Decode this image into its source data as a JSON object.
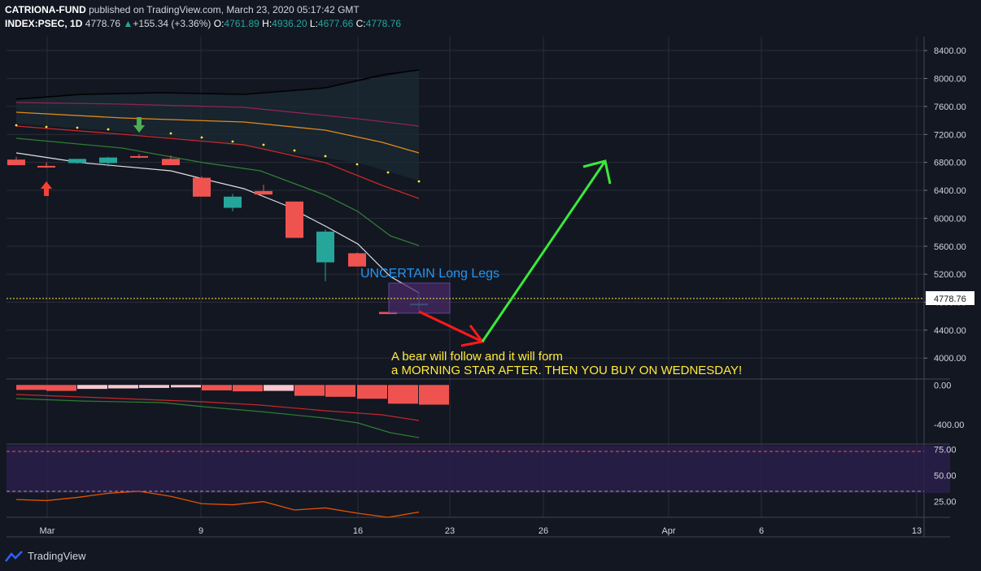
{
  "header": {
    "publisher": "CATRIONA-FUND",
    "published_text": "published on TradingView.com, March 23, 2020 05:17:42 GMT",
    "symbol": "INDEX:PSEC, 1D",
    "last": "4778.76",
    "change": "+155.34 (+3.36%)",
    "o_label": "O:",
    "o": "4761.89",
    "h_label": "H:",
    "h": "4936.20",
    "l_label": "L:",
    "l": "4677.66",
    "c_label": "C:",
    "c": "4778.76"
  },
  "footer": {
    "brand": "TradingView"
  },
  "colors": {
    "background": "#131722",
    "up": "#26a69a",
    "down": "#ef5350",
    "grid": "#2a2e39"
  },
  "chart_data": [
    {
      "type": "candlestick",
      "ylim": [
        3700,
        8600
      ],
      "y_ticks": [
        "8400.00",
        "8000.00",
        "7600.00",
        "7200.00",
        "6800.00",
        "6400.00",
        "6000.00",
        "5600.00",
        "5200.00",
        "4800.00",
        "4400.00",
        "4000.00"
      ],
      "x_ticks": [
        "Mar",
        "9",
        "16",
        "23",
        "26",
        "Apr",
        "6",
        "13"
      ],
      "last_price_label": "4778.76",
      "candles": [
        {
          "date": "2020-02-27",
          "o": 6840,
          "h": 6880,
          "l": 6760,
          "c": 6760
        },
        {
          "date": "2020-02-28",
          "o": 6750,
          "h": 6800,
          "l": 6720,
          "c": 6740
        },
        {
          "date": "2020-03-02",
          "o": 6790,
          "h": 6850,
          "l": 6780,
          "c": 6850
        },
        {
          "date": "2020-03-03",
          "o": 6790,
          "h": 6880,
          "l": 6740,
          "c": 6870
        },
        {
          "date": "2020-03-04",
          "o": 6890,
          "h": 6920,
          "l": 6860,
          "c": 6880
        },
        {
          "date": "2020-03-05",
          "o": 6850,
          "h": 6900,
          "l": 6760,
          "c": 6760
        },
        {
          "date": "2020-03-09",
          "o": 6580,
          "h": 6600,
          "l": 6310,
          "c": 6310
        },
        {
          "date": "2020-03-10",
          "o": 6150,
          "h": 6350,
          "l": 6100,
          "c": 6310
        },
        {
          "date": "2020-03-11",
          "o": 6390,
          "h": 6480,
          "l": 6340,
          "c": 6340
        },
        {
          "date": "2020-03-12",
          "o": 6240,
          "h": 6240,
          "l": 5720,
          "c": 5720
        },
        {
          "date": "2020-03-13",
          "o": 5370,
          "h": 5840,
          "l": 5100,
          "c": 5810
        },
        {
          "date": "2020-03-16",
          "o": 5500,
          "h": 5510,
          "l": 5310,
          "c": 5310
        },
        {
          "date": "2020-03-17",
          "o": 4660,
          "h": 4660,
          "l": 4630,
          "c": 4630
        },
        {
          "date": "2020-03-19",
          "o": 4761.89,
          "h": 4936.2,
          "l": 4677.66,
          "c": 4778.76
        }
      ],
      "markers": [
        {
          "kind": "arrow-down",
          "color": "green",
          "date": "2020-03-04"
        },
        {
          "kind": "arrow-up",
          "color": "red",
          "date": "2020-02-28"
        }
      ],
      "annotations": [
        {
          "text": "UNCERTAIN Long Legs",
          "color": "#2196f3"
        },
        {
          "text": "A bear will follow and it will form",
          "color": "#ffeb3b"
        },
        {
          "text": "a MORNING STAR AFTER. THEN YOU BUY ON WEDNESDAY!",
          "color": "#ffeb3b"
        }
      ]
    },
    {
      "type": "bar",
      "name": "MACD",
      "ylim": [
        -600,
        60
      ],
      "y_ticks": [
        "0.00",
        "-400.00"
      ],
      "values": [
        -50,
        -60,
        -40,
        -35,
        -30,
        -25,
        -55,
        -65,
        -60,
        -110,
        -120,
        -140,
        -190,
        -200
      ]
    },
    {
      "type": "line",
      "name": "RSI",
      "ylim": [
        10,
        80
      ],
      "y_ticks": [
        "75.00",
        "50.00",
        "25.00"
      ],
      "bands": [
        70,
        30
      ],
      "values": [
        27,
        26,
        29,
        33,
        35,
        30,
        23,
        22,
        25,
        17,
        19,
        14,
        10,
        15
      ]
    }
  ]
}
